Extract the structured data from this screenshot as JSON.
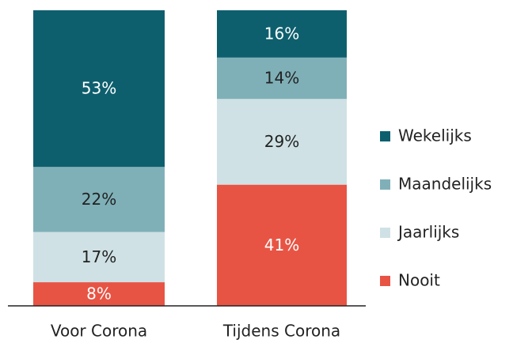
{
  "chart_data": {
    "type": "stacked_bar",
    "categories": [
      "Voor Corona",
      "Tijdens Corona"
    ],
    "series": [
      {
        "name": "Wekelijks",
        "color": "#0e5f6e",
        "values": [
          53,
          16
        ],
        "value_labels": [
          "53%",
          "16%"
        ]
      },
      {
        "name": "Maandelijks",
        "color": "#7fb0b8",
        "values": [
          22,
          14
        ],
        "value_labels": [
          "22%",
          "14%"
        ]
      },
      {
        "name": "Jaarlijks",
        "color": "#cfe1e5",
        "values": [
          17,
          29
        ],
        "value_labels": [
          "17%",
          "29%"
        ]
      },
      {
        "name": "Nooit",
        "color": "#e85444",
        "values": [
          8,
          41
        ],
        "value_labels": [
          "8%",
          "41%"
        ]
      }
    ],
    "ylim": [
      0,
      100
    ]
  }
}
